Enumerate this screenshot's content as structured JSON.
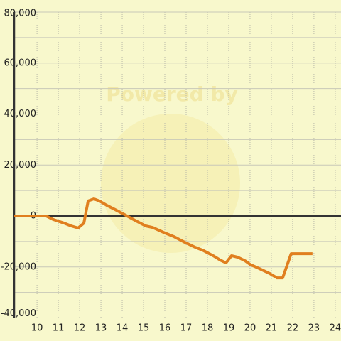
{
  "chart_data": {
    "type": "line",
    "watermark": "Powered by",
    "x": [
      8.93,
      10.43,
      10.77,
      11.27,
      11.6,
      11.93,
      12.2,
      12.4,
      12.67,
      12.93,
      13.27,
      13.67,
      14.1,
      14.6,
      15.1,
      15.43,
      15.93,
      16.43,
      16.93,
      17.43,
      17.77,
      18.27,
      18.6,
      18.87,
      19.13,
      19.43,
      19.77,
      20.0,
      20.43,
      20.93,
      21.27,
      21.53,
      21.93,
      22.93
    ],
    "series": [
      {
        "color": "#e07f1f",
        "values": [
          0,
          0,
          -1400,
          -2800,
          -3900,
          -4700,
          -2800,
          5900,
          6700,
          5900,
          4200,
          2500,
          600,
          -1700,
          -3900,
          -4500,
          -6400,
          -8100,
          -10300,
          -12300,
          -13400,
          -15600,
          -17300,
          -18400,
          -15600,
          -16200,
          -17600,
          -19000,
          -20600,
          -22600,
          -24300,
          -24300,
          -14800,
          -14800
        ]
      }
    ],
    "xlim": [
      8.93,
      24.27
    ],
    "ylim": [
      -40000,
      80000
    ],
    "xticks": [
      10,
      11,
      12,
      13,
      14,
      15,
      16,
      17,
      18,
      19,
      20,
      21,
      22,
      23,
      24
    ],
    "yticks": [
      {
        "value": -40000,
        "label": "-40,000"
      },
      {
        "value": -20000,
        "label": "-20,000"
      },
      0,
      {
        "value": 20000,
        "label": "20,000"
      },
      {
        "value": 40000,
        "label": "40,000"
      },
      {
        "value": 60000,
        "label": "60,000"
      },
      {
        "value": 80000,
        "label": "80,000"
      }
    ],
    "ygrid": [
      -30000,
      -10000,
      10000,
      30000,
      50000,
      70000
    ],
    "grid": true
  }
}
